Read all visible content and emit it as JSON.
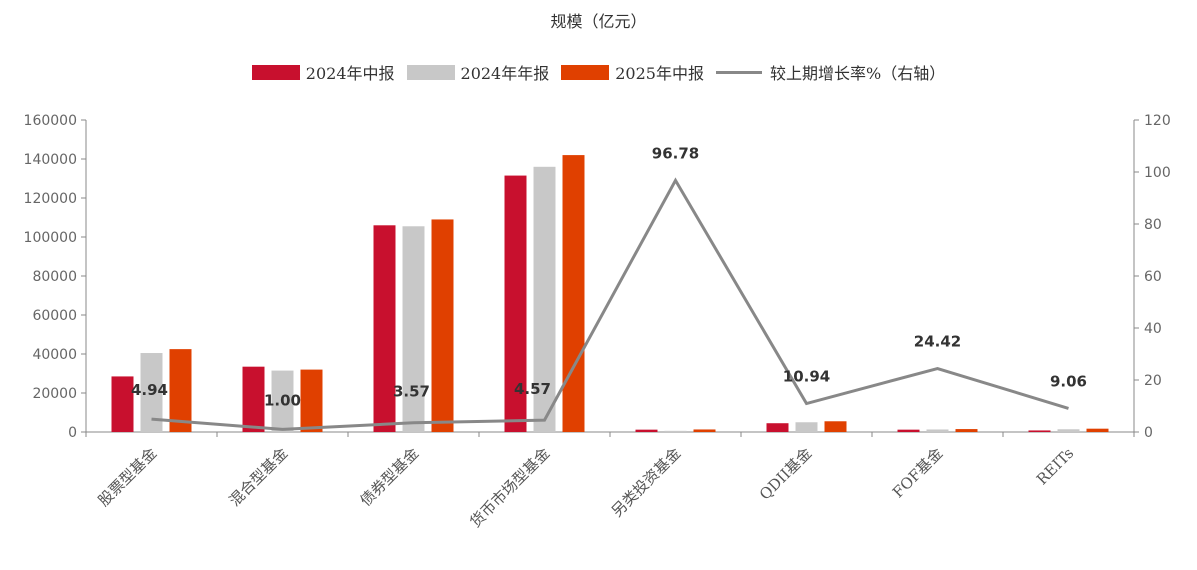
{
  "chart_data": {
    "type": "bar",
    "title": "规模（亿元）",
    "categories": [
      "股票型基金",
      "混合型基金",
      "债券型基金",
      "货币市场型基金",
      "另类投资基金",
      "QDII基金",
      "FOF基金",
      "REITs"
    ],
    "series": [
      {
        "name": "2024年中报",
        "type": "bar",
        "axis": "left",
        "color": "#C8102E",
        "values": [
          28500,
          33500,
          106000,
          131500,
          1200,
          4500,
          1200,
          800
        ]
      },
      {
        "name": "2024年年报",
        "type": "bar",
        "axis": "left",
        "color": "#C8C8C8",
        "values": [
          40500,
          31500,
          105500,
          136000,
          600,
          5000,
          1300,
          1400
        ]
      },
      {
        "name": "2025年中报",
        "type": "bar",
        "axis": "left",
        "color": "#E04000",
        "values": [
          42500,
          32000,
          109000,
          142000,
          1300,
          5500,
          1500,
          1700
        ]
      },
      {
        "name": "较上期增长率%（右轴）",
        "type": "line",
        "axis": "right",
        "color": "#888888",
        "values": [
          4.94,
          1.0,
          3.57,
          4.57,
          96.78,
          10.94,
          24.42,
          9.06
        ]
      }
    ],
    "data_labels": [
      "4.94",
      "1.00",
      "3.57",
      "4.57",
      "96.78",
      "10.94",
      "24.42",
      "9.06"
    ],
    "y_left": {
      "min": 0,
      "max": 160000,
      "ticks": [
        "0",
        "20000",
        "40000",
        "60000",
        "80000",
        "100000",
        "120000",
        "140000",
        "160000"
      ]
    },
    "y_right": {
      "min": 0,
      "max": 120,
      "ticks": [
        "0",
        "20",
        "40",
        "60",
        "80",
        "100",
        "120"
      ]
    },
    "legend_position": "top",
    "grid": false
  }
}
